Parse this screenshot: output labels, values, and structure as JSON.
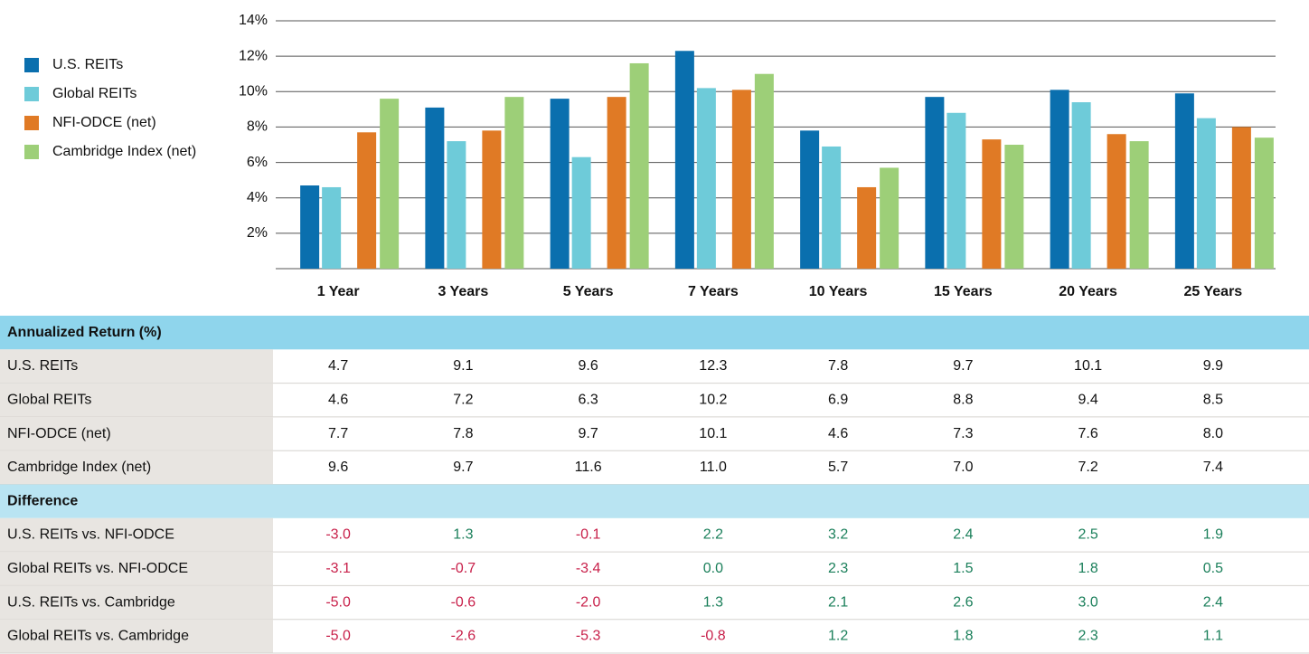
{
  "chart_data": {
    "type": "bar",
    "categories": [
      "1 Year",
      "3 Years",
      "5 Years",
      "7 Years",
      "10 Years",
      "15 Years",
      "20 Years",
      "25 Years"
    ],
    "series": [
      {
        "name": "U.S. REITs",
        "color": "#0a6fae",
        "values": [
          4.7,
          9.1,
          9.6,
          12.3,
          7.8,
          9.7,
          10.1,
          9.9
        ],
        "value_labels": [
          "4.7",
          "9.1",
          "9.6",
          "12.3",
          "7.8",
          "9.7",
          "10.1",
          "9.9"
        ]
      },
      {
        "name": "Global REITs",
        "color": "#6ecbd9",
        "values": [
          4.6,
          7.2,
          6.3,
          10.2,
          6.9,
          8.8,
          9.4,
          8.5
        ],
        "value_labels": [
          "4.6",
          "7.2",
          "6.3",
          "10.2",
          "6.9",
          "8.8",
          "9.4",
          "8.5"
        ]
      },
      {
        "name": "NFI-ODCE (net)",
        "color": "#e07a25",
        "values": [
          7.7,
          7.8,
          9.7,
          10.1,
          4.6,
          7.3,
          7.6,
          8.0
        ],
        "value_labels": [
          "7.7",
          "7.8",
          "9.7",
          "10.1",
          "4.6",
          "7.3",
          "7.6",
          "8.0"
        ]
      },
      {
        "name": "Cambridge Index (net)",
        "color": "#9dcf78",
        "values": [
          9.6,
          9.7,
          11.6,
          11.0,
          5.7,
          7.0,
          7.2,
          7.4
        ],
        "value_labels": [
          "9.6",
          "9.7",
          "11.6",
          "11.0",
          "5.7",
          "7.0",
          "7.2",
          "7.4"
        ]
      }
    ],
    "ylim": [
      0,
      14
    ],
    "yticks": [
      {
        "value": 2,
        "label": "2%"
      },
      {
        "value": 4,
        "label": "4%"
      },
      {
        "value": 6,
        "label": "6%"
      },
      {
        "value": 8,
        "label": "8%"
      },
      {
        "value": 10,
        "label": "10%"
      },
      {
        "value": 12,
        "label": "12%"
      },
      {
        "value": 14,
        "label": "14%"
      }
    ],
    "grid": true
  },
  "table": {
    "return_header": "Annualized Return (%)",
    "difference_header": "Difference",
    "difference_rows": [
      {
        "label": "U.S. REITs vs. NFI-ODCE",
        "values": [
          "-3.0",
          "1.3",
          "-0.1",
          "2.2",
          "3.2",
          "2.4",
          "2.5",
          "1.9"
        ]
      },
      {
        "label": "Global REITs vs. NFI-ODCE",
        "values": [
          "-3.1",
          "-0.7",
          "-3.4",
          "0.0",
          "2.3",
          "1.5",
          "1.8",
          "0.5"
        ]
      },
      {
        "label": "U.S. REITs vs. Cambridge",
        "values": [
          "-5.0",
          "-0.6",
          "-2.0",
          "1.3",
          "2.1",
          "2.6",
          "3.0",
          "2.4"
        ]
      },
      {
        "label": "Global REITs vs. Cambridge",
        "values": [
          "-5.0",
          "-2.6",
          "-5.3",
          "-0.8",
          "1.2",
          "1.8",
          "2.3",
          "1.1"
        ]
      }
    ]
  }
}
